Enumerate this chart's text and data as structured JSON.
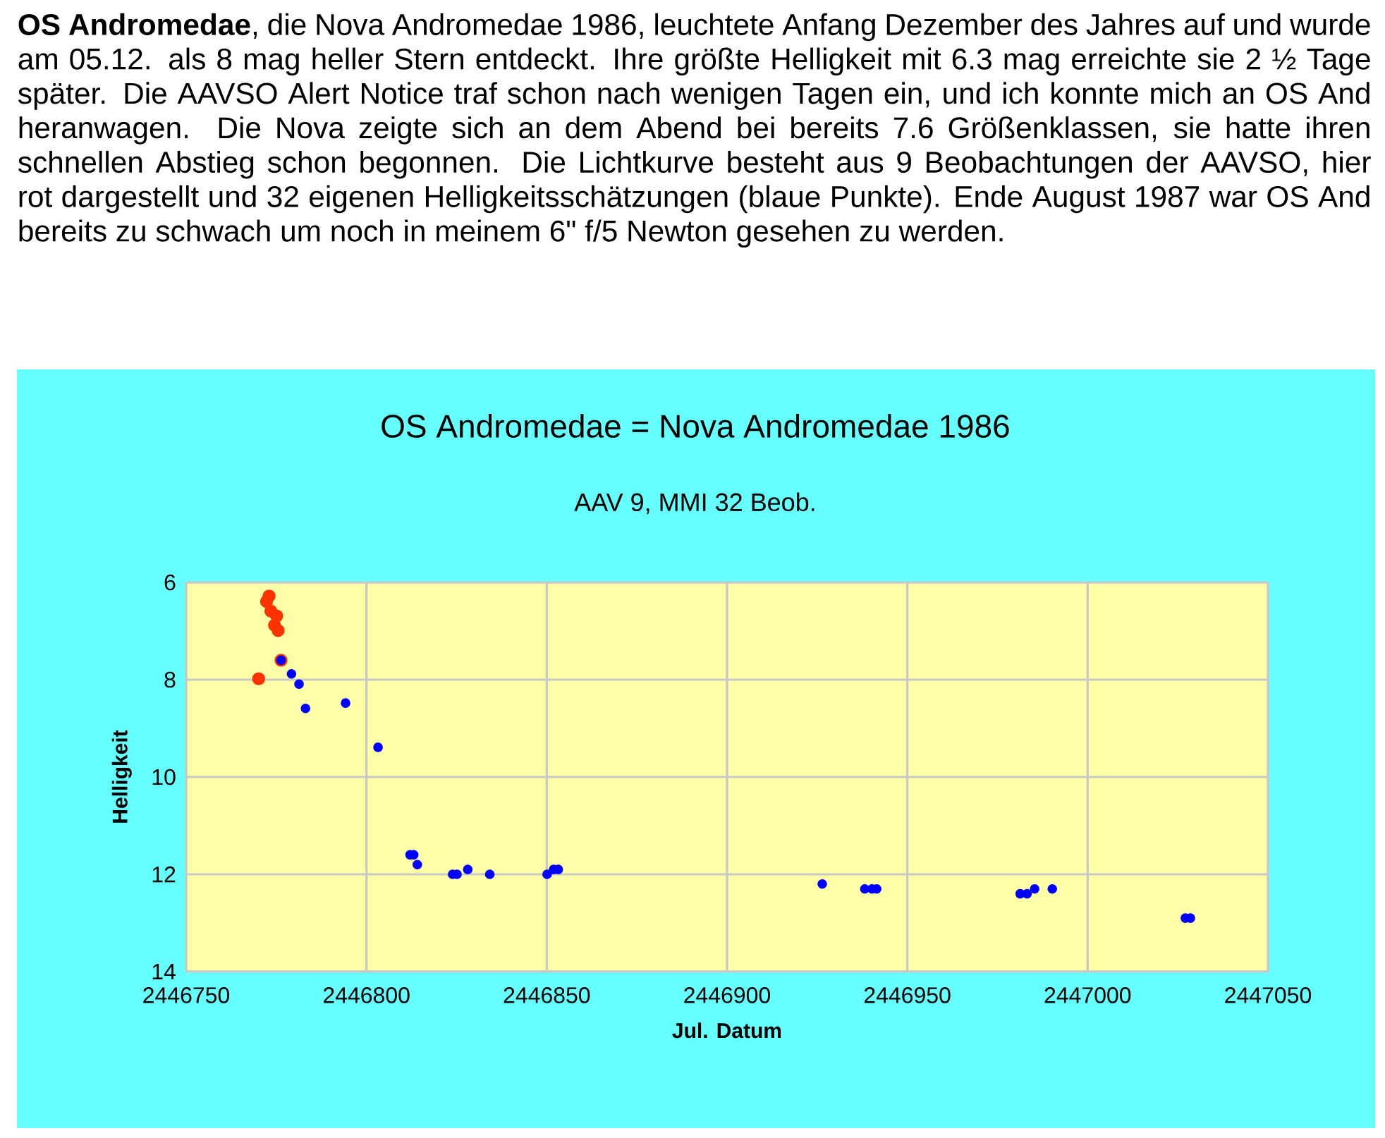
{
  "chart_data": {
    "type": "scatter",
    "title": "OS Andromedae = Nova Andromedae 1986",
    "subtitle": "AAV 9, MMI 32 Beob.",
    "xlabel": "Jul. Datum",
    "ylabel": "Helligkeit",
    "annotations": [
      "**OS Andromedae**, die Nova Andromedae 1986, leuchtete Anfang Dezember des Jahres auf und wurde am 05.12. als 8 mag heller Stern entdeckt. Ihre größte Helligkeit mit 6.3 mag erreichte sie 2 ½ Tage später. Die AAVSO Alert Notice traf schon nach wenigen Tagen ein, und ich konnte mich an OS And heranwagen. Die Nova zeigte sich an dem Abend bei bereits 7.6 Größenklassen,  sie hatte ihren schnellen Abstieg schon begonnen. Die Lichtkurve besteht aus 9 Beobachtungen der AAVSO, hier rot dargestellt und 32 eigenen Helligkeitsschätzungen (blaue Punkte). Ende August 1987 war OS And bereits zu schwach um noch in meinem 6\" f/5 Newton gesehen zu werden."
    ],
    "series": [
      {
        "color": "#ff3300",
        "x": [
          2446773.0,
          2446772.3,
          2446773.5,
          2446775.1,
          2446774.5,
          2446775.5,
          2446770.1,
          2446776.3
        ],
        "values": [
          6.28,
          6.39,
          6.59,
          6.69,
          6.88,
          6.99,
          7.98,
          7.6
        ]
      },
      {
        "color": "#0000ff",
        "x": [
          2446776.3,
          2446779.2,
          2446781.3,
          2446783.1,
          2446794.2,
          2446803.2,
          2446812.1,
          2446813.1,
          2446814.1,
          2446823.9,
          2446825.1,
          2446828.1,
          2446834.2,
          2446850.1,
          2446851.9,
          2446853.2,
          2446926.4,
          2446938.2,
          2446940.2,
          2446941.5,
          2446981.3,
          2446983.2,
          2446985.3,
          2446990.2,
          2447027.1,
          2447028.5
        ],
        "values": [
          7.6,
          7.88,
          8.09,
          8.59,
          8.48,
          9.39,
          11.6,
          11.6,
          11.8,
          12.0,
          12.0,
          11.9,
          12.0,
          12.0,
          11.9,
          11.9,
          12.2,
          12.3,
          12.3,
          12.3,
          12.4,
          12.4,
          12.3,
          12.3,
          12.9,
          12.9
        ]
      }
    ],
    "xlim": [
      2446750,
      2447050
    ],
    "xticks": [
      2446750,
      2446800,
      2446850,
      2446900,
      2446950,
      2447000,
      2447050
    ],
    "ylim": [
      14,
      6
    ],
    "yticks": [
      6,
      8,
      10,
      12,
      14
    ],
    "grid": true
  }
}
